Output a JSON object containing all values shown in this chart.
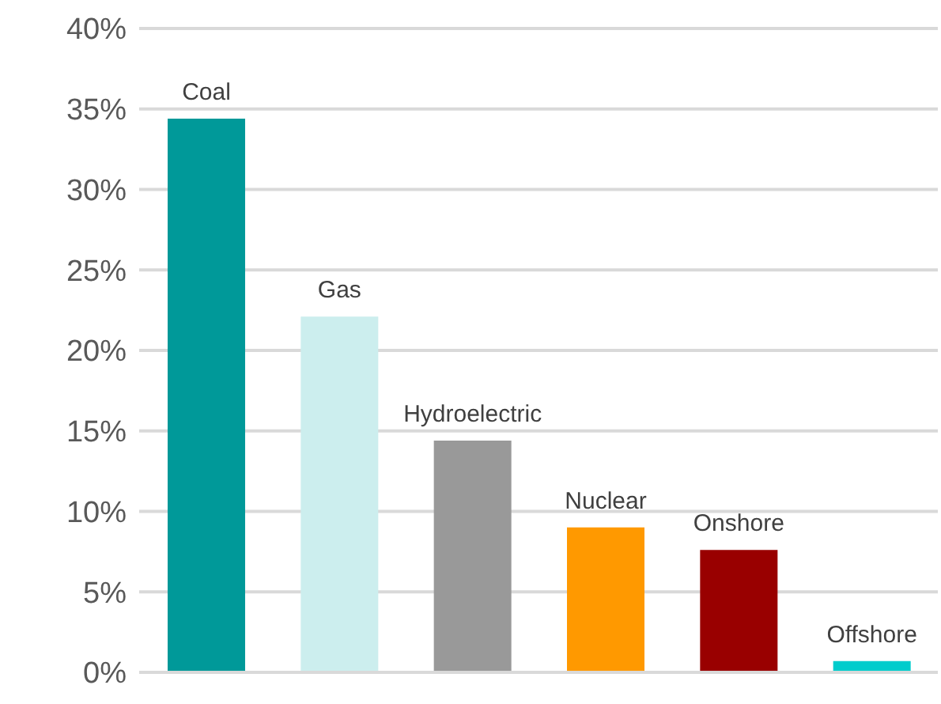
{
  "chart_data": {
    "type": "bar",
    "categories": [
      "Coal",
      "Gas",
      "Hydroelectric",
      "Nuclear",
      "Onshore",
      "Offshore"
    ],
    "values": [
      34.4,
      22.1,
      14.4,
      9.0,
      7.6,
      0.7
    ],
    "colors": [
      "#009999",
      "#cceeee",
      "#999999",
      "#ff9900",
      "#990000",
      "#00cccc"
    ],
    "ylim": [
      0,
      40
    ],
    "yticks": [
      {
        "value": 0,
        "label": "0%"
      },
      {
        "value": 5,
        "label": "5%"
      },
      {
        "value": 10,
        "label": "10%"
      },
      {
        "value": 15,
        "label": "15%"
      },
      {
        "value": 20,
        "label": "20%"
      },
      {
        "value": 25,
        "label": "25%"
      },
      {
        "value": 30,
        "label": "30%"
      },
      {
        "value": 35,
        "label": "35%"
      },
      {
        "value": 40,
        "label": "40%"
      }
    ],
    "grid": "y"
  }
}
